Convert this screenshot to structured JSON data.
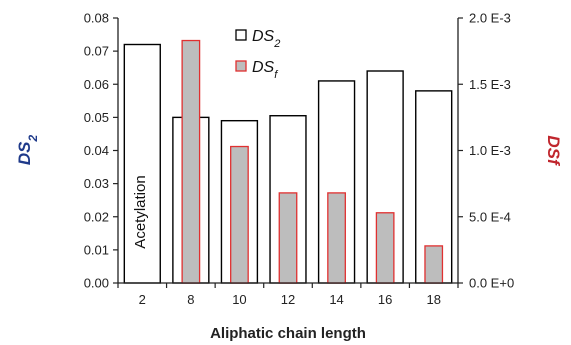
{
  "chart_data": {
    "type": "bar",
    "title": "",
    "xlabel": "Aliphatic chain length",
    "categories": [
      "2",
      "8",
      "10",
      "12",
      "14",
      "16",
      "18"
    ],
    "ylabel_left_main": "DS",
    "ylabel_left_sub": "2",
    "ylabel_right": "DSf",
    "ylim_left": [
      0,
      0.08
    ],
    "yticks_left": [
      "0.00",
      "0.01",
      "0.02",
      "0.03",
      "0.04",
      "0.05",
      "0.06",
      "0.07",
      "0.08"
    ],
    "ylim_right": [
      0,
      0.002
    ],
    "yticks_right": [
      "0.0 E+0",
      "5.0 E-4",
      "1.0 E-3",
      "1.5 E-3",
      "2.0 E-3"
    ],
    "series": [
      {
        "name_main": "DS",
        "name_sub": "2",
        "axis": "left",
        "values": [
          0.072,
          0.05,
          0.049,
          0.0505,
          0.061,
          0.064,
          0.058
        ],
        "color": "#ffffff",
        "edge": "#000000"
      },
      {
        "name_main": "DS",
        "name_sub": "f",
        "axis": "right",
        "values": [
          null,
          0.00183,
          0.00103,
          0.00068,
          0.00068,
          0.00053,
          0.00028
        ],
        "color": "#bdbdbd",
        "edge": "#e03030"
      }
    ],
    "annotation": "Acetylation",
    "legend_position": "top-center",
    "grid": false
  },
  "colors": {
    "left_axis_label": "#1f3a8a",
    "right_axis_label": "#c0262d"
  }
}
